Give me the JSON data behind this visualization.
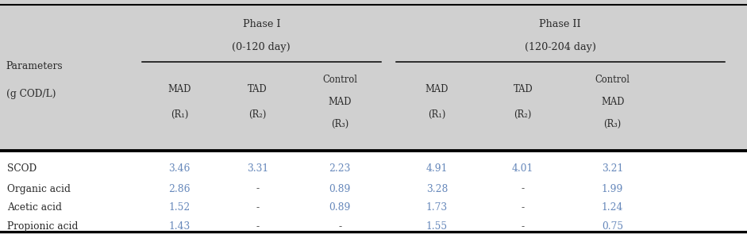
{
  "bg_color": "#d0d0d0",
  "data_bg_color": "#ffffff",
  "text_color_dark": "#2a2a2a",
  "text_color_blue": "#6688bb",
  "text_color_dash": "#aaaaaa",
  "phase1_label_line1": "Phase I",
  "phase1_label_line2": "(0-120 day)",
  "phase2_label_line1": "Phase II",
  "phase2_label_line2": "(120-204 day)",
  "row_labels": [
    "SCOD",
    "Organic acid",
    "Acetic acid",
    "Propionic acid"
  ],
  "table_data": [
    [
      "3.46",
      "3.31",
      "2.23",
      "4.91",
      "4.01",
      "3.21"
    ],
    [
      "2.86",
      "-",
      "0.89",
      "3.28",
      "-",
      "1.99"
    ],
    [
      "1.52",
      "-",
      "0.89",
      "1.73",
      "-",
      "1.24"
    ],
    [
      "1.43",
      "-",
      "-",
      "1.55",
      "-",
      "0.75"
    ]
  ],
  "figsize": [
    9.41,
    2.95
  ],
  "dpi": 100
}
